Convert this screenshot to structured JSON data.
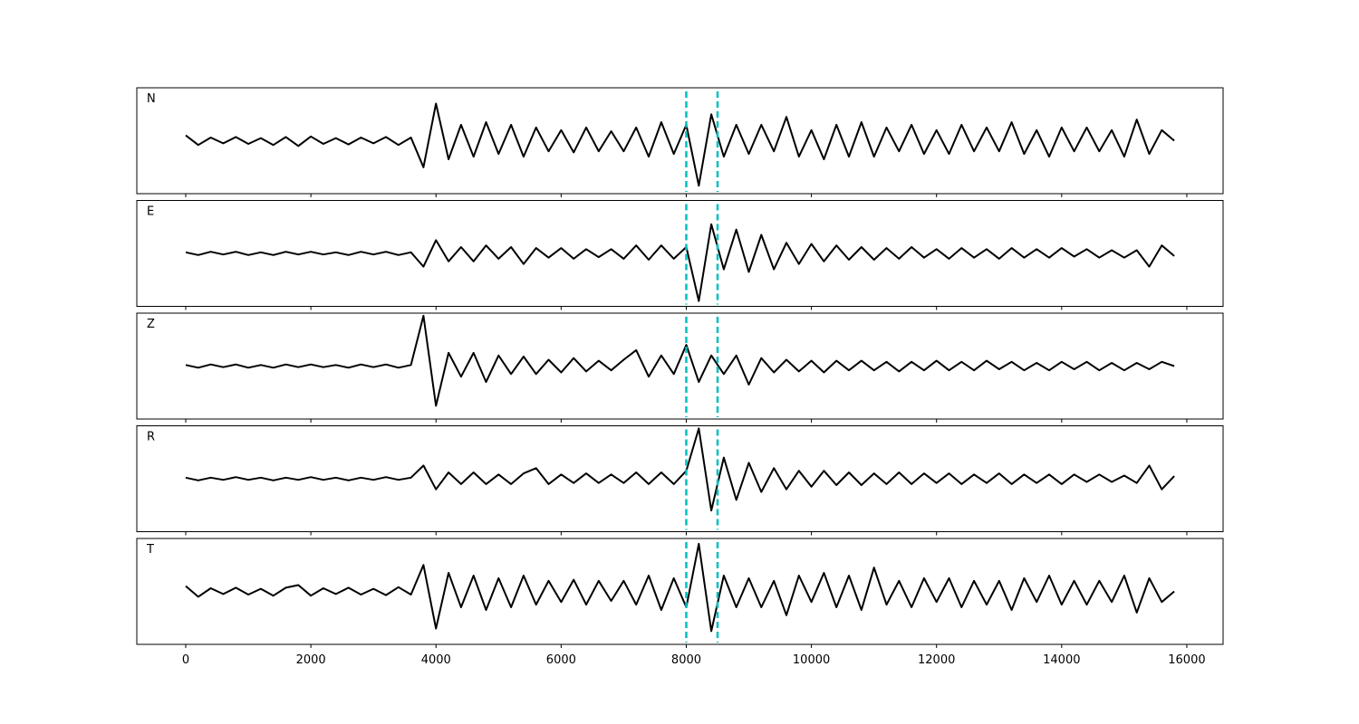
{
  "chart_data": {
    "type": "line",
    "xlim": [
      -782,
      16580
    ],
    "xticks": [
      0,
      2000,
      4000,
      6000,
      8000,
      10000,
      12000,
      14000,
      16000
    ],
    "ylim": [
      -1,
      1
    ],
    "line_color": "#000000",
    "vlines": [
      8000,
      8500
    ],
    "vline_color": "#00bfbf",
    "x": [
      0,
      200,
      400,
      600,
      800,
      1000,
      1200,
      1400,
      1600,
      1800,
      2000,
      2200,
      2400,
      2600,
      2800,
      3000,
      3200,
      3400,
      3600,
      3800,
      4000,
      4200,
      4400,
      4600,
      4800,
      5000,
      5200,
      5400,
      5600,
      5800,
      6000,
      6200,
      6400,
      6600,
      6800,
      7000,
      7200,
      7400,
      7600,
      7800,
      8000,
      8200,
      8400,
      8600,
      8800,
      9000,
      9200,
      9400,
      9600,
      9800,
      10000,
      10200,
      10400,
      10600,
      10800,
      11000,
      11200,
      11400,
      11600,
      11800,
      12000,
      12200,
      12400,
      12600,
      12800,
      13000,
      13200,
      13400,
      13600,
      13800,
      14000,
      14200,
      14400,
      14600,
      14800,
      15000,
      15200,
      15400,
      15600,
      15800
    ],
    "panels": [
      {
        "label": "N",
        "values": [
          0.1,
          -0.08,
          0.06,
          -0.05,
          0.07,
          -0.06,
          0.05,
          -0.08,
          0.07,
          -0.1,
          0.08,
          -0.06,
          0.05,
          -0.07,
          0.06,
          -0.05,
          0.07,
          -0.08,
          0.06,
          -0.5,
          0.7,
          -0.35,
          0.3,
          -0.3,
          0.35,
          -0.25,
          0.3,
          -0.3,
          0.25,
          -0.2,
          0.2,
          -0.22,
          0.25,
          -0.2,
          0.18,
          -0.2,
          0.25,
          -0.3,
          0.35,
          -0.25,
          0.3,
          -0.85,
          0.5,
          -0.3,
          0.3,
          -0.25,
          0.3,
          -0.2,
          0.45,
          -0.3,
          0.2,
          -0.35,
          0.3,
          -0.3,
          0.35,
          -0.3,
          0.25,
          -0.2,
          0.3,
          -0.25,
          0.2,
          -0.25,
          0.3,
          -0.2,
          0.25,
          -0.2,
          0.35,
          -0.25,
          0.2,
          -0.3,
          0.25,
          -0.2,
          0.25,
          -0.2,
          0.2,
          -0.3,
          0.4,
          -0.25,
          0.2,
          0.0
        ]
      },
      {
        "label": "E",
        "values": [
          0.02,
          -0.03,
          0.03,
          -0.02,
          0.03,
          -0.03,
          0.02,
          -0.03,
          0.03,
          -0.02,
          0.03,
          -0.02,
          0.02,
          -0.03,
          0.03,
          -0.02,
          0.03,
          -0.03,
          0.02,
          -0.25,
          0.25,
          -0.15,
          0.12,
          -0.15,
          0.15,
          -0.1,
          0.12,
          -0.2,
          0.1,
          -0.08,
          0.1,
          -0.1,
          0.08,
          -0.07,
          0.08,
          -0.1,
          0.15,
          -0.12,
          0.15,
          -0.1,
          0.12,
          -0.9,
          0.55,
          -0.3,
          0.45,
          -0.35,
          0.35,
          -0.3,
          0.2,
          -0.2,
          0.18,
          -0.15,
          0.15,
          -0.12,
          0.12,
          -0.12,
          0.1,
          -0.1,
          0.12,
          -0.08,
          0.08,
          -0.1,
          0.1,
          -0.08,
          0.08,
          -0.1,
          0.1,
          -0.08,
          0.08,
          -0.08,
          0.1,
          -0.06,
          0.08,
          -0.08,
          0.06,
          -0.08,
          0.06,
          -0.25,
          0.15,
          -0.05
        ]
      },
      {
        "label": "Z",
        "values": [
          0.02,
          -0.03,
          0.03,
          -0.02,
          0.03,
          -0.03,
          0.02,
          -0.03,
          0.03,
          -0.02,
          0.03,
          -0.02,
          0.02,
          -0.03,
          0.03,
          -0.02,
          0.03,
          -0.03,
          0.02,
          0.95,
          -0.75,
          0.25,
          -0.2,
          0.25,
          -0.3,
          0.2,
          -0.15,
          0.18,
          -0.15,
          0.12,
          -0.12,
          0.15,
          -0.1,
          0.1,
          -0.08,
          0.12,
          0.3,
          -0.2,
          0.2,
          -0.15,
          0.4,
          -0.3,
          0.2,
          -0.15,
          0.2,
          -0.35,
          0.15,
          -0.12,
          0.12,
          -0.1,
          0.1,
          -0.12,
          0.1,
          -0.08,
          0.1,
          -0.08,
          0.08,
          -0.1,
          0.08,
          -0.08,
          0.1,
          -0.08,
          0.08,
          -0.08,
          0.1,
          -0.06,
          0.08,
          -0.08,
          0.06,
          -0.08,
          0.08,
          -0.06,
          0.08,
          -0.08,
          0.06,
          -0.08,
          0.06,
          -0.06,
          0.08,
          0.0
        ]
      },
      {
        "label": "R",
        "values": [
          0.02,
          -0.03,
          0.02,
          -0.02,
          0.03,
          -0.02,
          0.02,
          -0.03,
          0.02,
          -0.02,
          0.03,
          -0.02,
          0.02,
          -0.03,
          0.02,
          -0.02,
          0.03,
          -0.02,
          0.02,
          0.25,
          -0.2,
          0.12,
          -0.1,
          0.12,
          -0.1,
          0.08,
          -0.1,
          0.1,
          0.2,
          -0.1,
          0.08,
          -0.08,
          0.1,
          -0.08,
          0.08,
          -0.08,
          0.12,
          -0.1,
          0.12,
          -0.1,
          0.15,
          0.95,
          -0.6,
          0.4,
          -0.4,
          0.3,
          -0.25,
          0.2,
          -0.2,
          0.15,
          -0.15,
          0.15,
          -0.12,
          0.12,
          -0.12,
          0.1,
          -0.1,
          0.12,
          -0.1,
          0.1,
          -0.08,
          0.1,
          -0.1,
          0.08,
          -0.08,
          0.1,
          -0.1,
          0.08,
          -0.08,
          0.08,
          -0.1,
          0.08,
          -0.06,
          0.08,
          -0.06,
          0.06,
          -0.08,
          0.25,
          -0.2,
          0.05
        ]
      },
      {
        "label": "T",
        "values": [
          0.1,
          -0.1,
          0.06,
          -0.05,
          0.07,
          -0.06,
          0.05,
          -0.08,
          0.07,
          0.12,
          -0.08,
          0.06,
          -0.05,
          0.07,
          -0.06,
          0.05,
          -0.07,
          0.08,
          -0.06,
          0.5,
          -0.7,
          0.35,
          -0.3,
          0.3,
          -0.35,
          0.25,
          -0.3,
          0.3,
          -0.25,
          0.2,
          -0.2,
          0.22,
          -0.25,
          0.2,
          -0.18,
          0.2,
          -0.25,
          0.3,
          -0.35,
          0.25,
          -0.3,
          0.9,
          -0.75,
          0.3,
          -0.3,
          0.25,
          -0.3,
          0.2,
          -0.45,
          0.3,
          -0.2,
          0.35,
          -0.3,
          0.3,
          -0.35,
          0.45,
          -0.25,
          0.2,
          -0.3,
          0.25,
          -0.2,
          0.25,
          -0.3,
          0.2,
          -0.25,
          0.2,
          -0.35,
          0.25,
          -0.2,
          0.3,
          -0.25,
          0.2,
          -0.25,
          0.2,
          -0.2,
          0.3,
          -0.4,
          0.25,
          -0.2,
          0.0
        ]
      }
    ]
  }
}
